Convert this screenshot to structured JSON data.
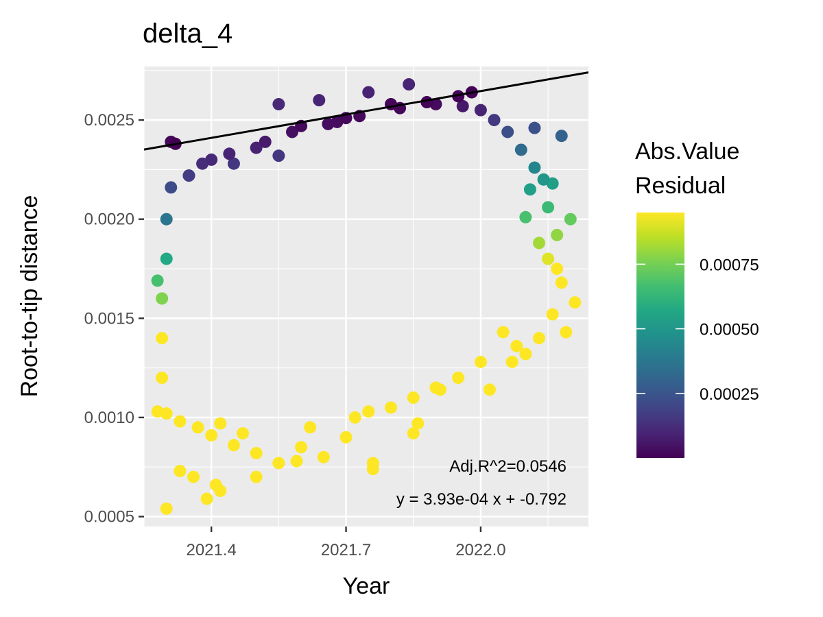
{
  "chart_data": {
    "type": "scatter",
    "title": "delta_4",
    "xlabel": "Year",
    "ylabel": "Root-to-tip distance",
    "xlim": [
      2021.25,
      2022.24
    ],
    "ylim": [
      0.00045,
      0.00277
    ],
    "x_ticks": [
      {
        "value": 2021.4,
        "label": "2021.4"
      },
      {
        "value": 2021.7,
        "label": "2021.7"
      },
      {
        "value": 2022.0,
        "label": "2022.0"
      }
    ],
    "y_ticks": [
      {
        "value": 0.0005,
        "label": "0.0005"
      },
      {
        "value": 0.001,
        "label": "0.0010"
      },
      {
        "value": 0.0015,
        "label": "0.0015"
      },
      {
        "value": 0.002,
        "label": "0.0020"
      },
      {
        "value": 0.0025,
        "label": "0.0025"
      }
    ],
    "grid": true,
    "regression": {
      "slope": 0.000393,
      "intercept": -0.792
    },
    "annotations": {
      "r2": "Adj.R^2=0.0546",
      "equation": "y = 3.93e-04 x + -0.792"
    },
    "color_scale": {
      "title_line1": "Abs.Value",
      "title_line2": "Residual",
      "palette": "viridis",
      "colors": [
        "#440154",
        "#482475",
        "#414487",
        "#355F8D",
        "#2A788E",
        "#21908C",
        "#22A884",
        "#42BE71",
        "#7AD151",
        "#BDDF26",
        "#FDE725"
      ],
      "range": [
        0,
        0.00095
      ],
      "ticks": [
        {
          "value": 0.00025,
          "label": "0.00025"
        },
        {
          "value": 0.0005,
          "label": "0.00050"
        },
        {
          "value": 0.00075,
          "label": "0.00075"
        }
      ],
      "legend_position": "right"
    },
    "points": [
      [
        2021.3,
        0.00054
      ],
      [
        2021.33,
        0.00073
      ],
      [
        2021.36,
        0.0007
      ],
      [
        2021.39,
        0.00059
      ],
      [
        2021.41,
        0.00066
      ],
      [
        2021.42,
        0.00063
      ],
      [
        2021.5,
        0.0007
      ],
      [
        2021.59,
        0.00078
      ],
      [
        2021.76,
        0.00074
      ],
      [
        2021.76,
        0.00077
      ],
      [
        2021.85,
        0.00092
      ],
      [
        2021.86,
        0.00097
      ],
      [
        2021.91,
        0.00114
      ],
      [
        2022.02,
        0.00114
      ],
      [
        2021.55,
        0.00258
      ],
      [
        2021.64,
        0.0026
      ],
      [
        2021.75,
        0.00264
      ],
      [
        2021.84,
        0.00268
      ],
      [
        2021.98,
        0.00264
      ],
      [
        2021.31,
        0.00239
      ],
      [
        2021.32,
        0.00238
      ],
      [
        2022.19,
        0.00143
      ],
      [
        2022.21,
        0.00158
      ],
      [
        2022.2,
        0.002
      ],
      [
        2022.18,
        0.00242
      ],
      [
        2022.16,
        0.00218
      ],
      [
        2022.12,
        0.00246
      ],
      [
        2022.11,
        0.00215
      ],
      [
        2021.28,
        0.00169
      ],
      [
        2021.28,
        0.00103
      ],
      [
        2022.15,
        0.0018
      ],
      [
        2022.17,
        0.00175
      ],
      [
        2022.13,
        0.00188
      ],
      [
        2022.08,
        0.00136
      ],
      [
        2022.05,
        0.00143
      ],
      [
        2022.1,
        0.00201
      ],
      [
        2021.6,
        0.00247
      ],
      [
        2021.68,
        0.00249
      ],
      [
        2021.7,
        0.00251
      ],
      [
        2021.8,
        0.00258
      ],
      [
        2021.9,
        0.00258
      ],
      [
        2021.95,
        0.00262
      ],
      [
        2022.0,
        0.00255
      ],
      [
        2021.45,
        0.00228
      ],
      [
        2021.35,
        0.00222
      ],
      [
        2021.4,
        0.0023
      ],
      [
        2021.5,
        0.00236
      ],
      [
        2021.55,
        0.00232
      ],
      [
        2021.6,
        0.00085
      ],
      [
        2021.65,
        0.0008
      ],
      [
        2021.7,
        0.0009
      ],
      [
        2021.45,
        0.00086
      ],
      [
        2021.4,
        0.00091
      ],
      [
        2021.5,
        0.00082
      ],
      [
        2021.55,
        0.00077
      ],
      [
        2021.62,
        0.00095
      ],
      [
        2021.72,
        0.001
      ],
      [
        2021.8,
        0.00105
      ],
      [
        2021.9,
        0.00115
      ],
      [
        2022.0,
        0.00128
      ],
      [
        2021.95,
        0.0012
      ],
      [
        2021.85,
        0.0011
      ],
      [
        2021.75,
        0.00103
      ],
      [
        2021.3,
        0.00102
      ],
      [
        2021.33,
        0.00098
      ],
      [
        2021.37,
        0.00095
      ],
      [
        2021.42,
        0.00097
      ],
      [
        2021.47,
        0.00092
      ],
      [
        2021.35,
        0.00222
      ],
      [
        2021.38,
        0.00228
      ],
      [
        2021.44,
        0.00233
      ],
      [
        2021.52,
        0.00239
      ],
      [
        2021.58,
        0.00244
      ],
      [
        2021.66,
        0.00248
      ],
      [
        2021.73,
        0.00252
      ],
      [
        2021.82,
        0.00256
      ],
      [
        2021.88,
        0.00259
      ],
      [
        2021.96,
        0.00257
      ],
      [
        2022.03,
        0.0025
      ],
      [
        2022.06,
        0.00244
      ],
      [
        2022.09,
        0.00235
      ],
      [
        2022.12,
        0.00226
      ],
      [
        2022.14,
        0.0022
      ],
      [
        2022.15,
        0.00206
      ],
      [
        2022.17,
        0.00192
      ],
      [
        2022.18,
        0.00168
      ],
      [
        2022.16,
        0.00152
      ],
      [
        2022.13,
        0.0014
      ],
      [
        2022.1,
        0.00132
      ],
      [
        2022.07,
        0.00128
      ],
      [
        2021.29,
        0.0012
      ],
      [
        2021.29,
        0.0014
      ],
      [
        2021.29,
        0.0016
      ],
      [
        2021.3,
        0.0018
      ],
      [
        2021.3,
        0.002
      ],
      [
        2021.31,
        0.00216
      ]
    ]
  }
}
